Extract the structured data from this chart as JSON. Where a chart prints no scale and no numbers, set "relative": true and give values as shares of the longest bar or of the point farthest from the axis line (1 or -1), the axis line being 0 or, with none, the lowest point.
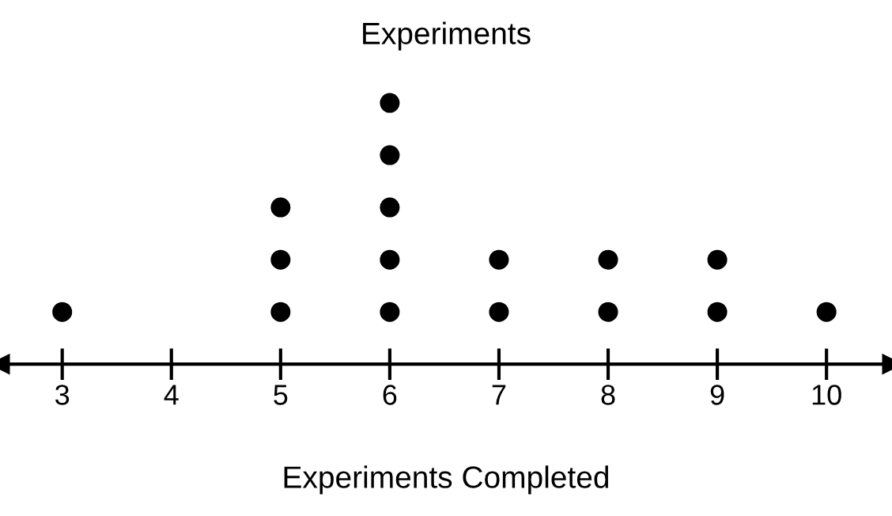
{
  "chart_data": {
    "type": "scatter",
    "title": "Experiments",
    "xlabel": "Experiments Completed",
    "relative": true,
    "color": "#000000",
    "marker": "circle",
    "grid": false,
    "x": [
      3,
      5,
      5,
      5,
      6,
      6,
      6,
      6,
      6,
      7,
      7,
      8,
      8,
      9,
      9,
      10
    ],
    "values": [
      0.2,
      0.2,
      0.4,
      0.6,
      0.2,
      0.4,
      0.6,
      0.8,
      1,
      0.2,
      0.4,
      0.2,
      0.4,
      0.2,
      0.4,
      0.2
    ],
    "xlim": [
      2.43,
      10.6
    ],
    "xticks": [
      3,
      4,
      5,
      6,
      7,
      8,
      9,
      10
    ]
  }
}
